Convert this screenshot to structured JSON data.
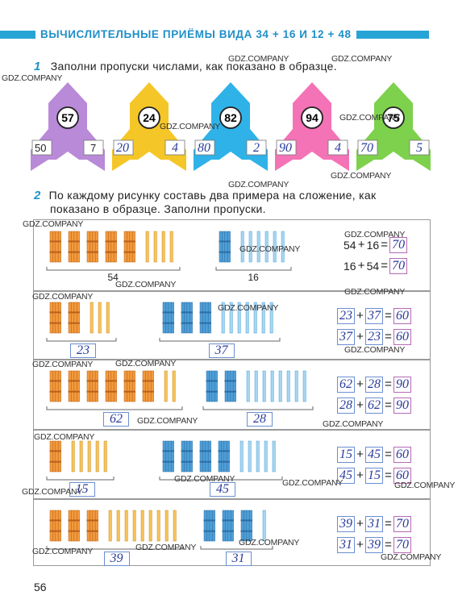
{
  "header": {
    "title": "ВЫЧИСЛИТЕЛЬНЫЕ ПРИЁМЫ ВИДА 34 + 16 И 12 + 48"
  },
  "task1": {
    "num": "1",
    "text": "Заполни пропуски числами, как показано в образце.",
    "rockets": [
      {
        "top": "57",
        "left": "50",
        "right": "7",
        "color": "#b98ad8"
      },
      {
        "top": "24",
        "left": "20",
        "right": "4",
        "color": "#f5c627"
      },
      {
        "top": "82",
        "left": "80",
        "right": "2",
        "color": "#2fb2e8"
      },
      {
        "top": "94",
        "left": "90",
        "right": "4",
        "color": "#f472b6"
      },
      {
        "top": "75",
        "left": "70",
        "right": "5",
        "color": "#7ed14c"
      }
    ]
  },
  "task2": {
    "num": "2",
    "text_line1": "По каждому рисунку составь два примера на сложение, как",
    "text_line2": "показано в образце. Заполни пропуски.",
    "rows": [
      {
        "bundles_o": 5,
        "sticks_o": 4,
        "bundles_b": 1,
        "sticks_b": 6,
        "label_o": "54",
        "label_b": "16",
        "eq1": {
          "a": "54",
          "b": "16",
          "r": "70"
        },
        "eq2": {
          "a": "16",
          "b": "54",
          "r": "70"
        }
      },
      {
        "bundles_o": 2,
        "sticks_o": 3,
        "bundles_b": 3,
        "sticks_b": 7,
        "label_o": "23",
        "label_b": "37",
        "eq1": {
          "a": "23",
          "b": "37",
          "r": "60"
        },
        "eq2": {
          "a": "37",
          "b": "23",
          "r": "60"
        }
      },
      {
        "bundles_o": 6,
        "sticks_o": 2,
        "bundles_b": 2,
        "sticks_b": 8,
        "label_o": "62",
        "label_b": "28",
        "eq1": {
          "a": "62",
          "b": "28",
          "r": "90"
        },
        "eq2": {
          "a": "28",
          "b": "62",
          "r": "90"
        }
      },
      {
        "bundles_o": 1,
        "sticks_o": 5,
        "bundles_b": 4,
        "sticks_b": 5,
        "label_o": "15",
        "label_b": "45",
        "eq1": {
          "a": "15",
          "b": "45",
          "r": "60"
        },
        "eq2": {
          "a": "45",
          "b": "15",
          "r": "60"
        }
      },
      {
        "bundles_o": 3,
        "sticks_o": 9,
        "bundles_b": 3,
        "sticks_b": 1,
        "label_o": "39",
        "label_b": "31",
        "eq1": {
          "a": "39",
          "b": "31",
          "r": "70"
        },
        "eq2": {
          "a": "31",
          "b": "39",
          "r": "70"
        }
      }
    ]
  },
  "plus": "+",
  "equals": "=",
  "page_number": "56",
  "watermark": "GDZ.COMPANY"
}
